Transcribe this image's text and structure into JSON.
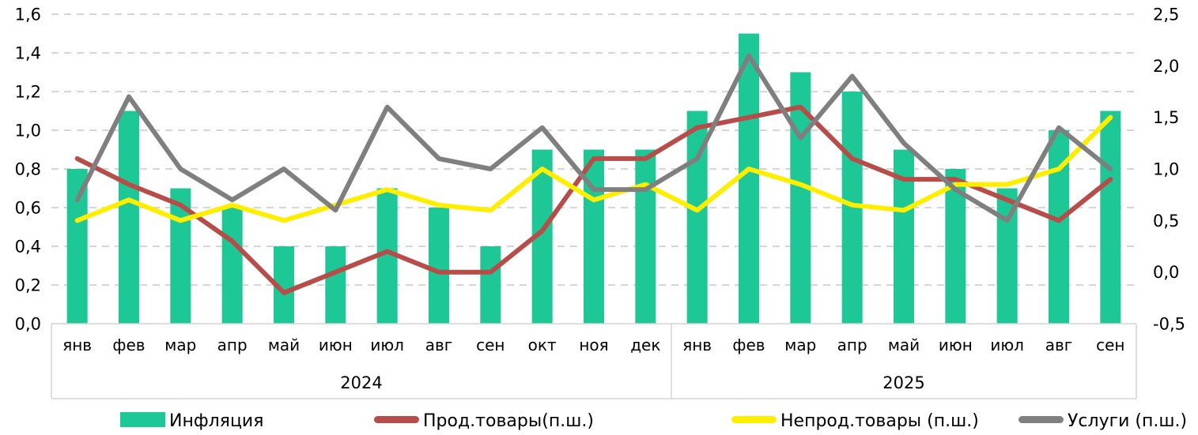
{
  "chart_data": {
    "type": "combo (bar + line, dual axis)",
    "title": "",
    "categories": [
      "янв",
      "фев",
      "мар",
      "апр",
      "май",
      "июн",
      "июл",
      "авг",
      "сен",
      "окт",
      "ноя",
      "дек",
      "янв",
      "фев",
      "мар",
      "апр",
      "май",
      "июн",
      "июл",
      "авг",
      "сен"
    ],
    "category_groups": [
      {
        "label": "2024",
        "count": 12
      },
      {
        "label": "2025",
        "count": 9
      }
    ],
    "left_axis": {
      "min": 0,
      "max": 1.6,
      "step": 0.2,
      "tick_labels": [
        "0,0",
        "0,2",
        "0,4",
        "0,6",
        "0,8",
        "1,0",
        "1,2",
        "1,4",
        "1,6"
      ]
    },
    "right_axis": {
      "min": -0.5,
      "max": 2.5,
      "step": 0.5,
      "tick_labels": [
        "-0,5",
        "0,0",
        "0,5",
        "1,0",
        "1,5",
        "2,0",
        "2,5"
      ]
    },
    "bar_series": {
      "id": "inflation",
      "name": "Инфляция",
      "axis": "left",
      "color": "#1ec896",
      "values": [
        0.8,
        1.1,
        0.7,
        0.6,
        0.4,
        0.4,
        0.7,
        0.6,
        0.4,
        0.9,
        0.9,
        0.9,
        1.1,
        1.5,
        1.3,
        1.2,
        0.9,
        0.8,
        0.7,
        1.0,
        1.1
      ]
    },
    "line_series": [
      {
        "id": "food",
        "name": "Прод.товары(п.ш.)",
        "axis": "right",
        "color": "#b84c49",
        "values": [
          1.1,
          0.85,
          0.65,
          0.3,
          -0.2,
          0.0,
          0.2,
          0.0,
          0.0,
          0.4,
          1.1,
          1.1,
          1.4,
          1.5,
          1.6,
          1.1,
          0.9,
          0.9,
          0.7,
          0.5,
          0.9
        ]
      },
      {
        "id": "nonfood",
        "name": "Непрод.товары (п.ш.)",
        "axis": "right",
        "color": "#ffee00",
        "values": [
          0.5,
          0.7,
          0.5,
          0.65,
          0.5,
          0.65,
          0.8,
          0.65,
          0.6,
          1.0,
          0.7,
          0.85,
          0.6,
          1.0,
          0.85,
          0.65,
          0.6,
          0.85,
          0.85,
          1.0,
          1.5
        ]
      },
      {
        "id": "services",
        "name": "Услуги (п.ш.)",
        "axis": "right",
        "color": "#7f7f7f",
        "values": [
          0.7,
          1.7,
          1.0,
          0.7,
          1.0,
          0.6,
          1.6,
          1.1,
          1.0,
          1.4,
          0.8,
          0.8,
          1.1,
          2.1,
          1.3,
          1.9,
          1.25,
          0.8,
          0.5,
          1.4,
          1.0
        ]
      }
    ],
    "grid": {
      "style": "dashed-horizontal",
      "color": "#c9c9c9"
    },
    "axis_box_color": "#d4d4d4",
    "legend_position": "bottom"
  }
}
